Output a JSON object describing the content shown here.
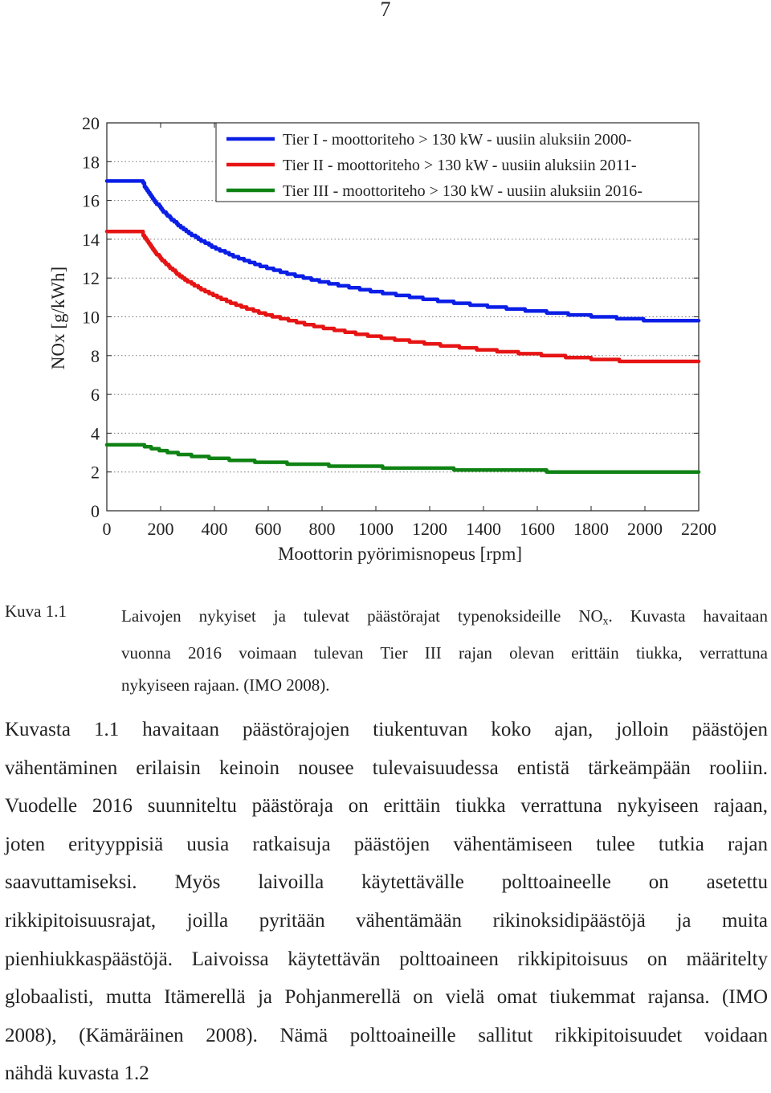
{
  "page_number": "7",
  "chart_data": {
    "type": "line",
    "title": "",
    "xlabel": "Moottorin pyörimisnopeus [rpm]",
    "ylabel": "NOx [g/kWh]",
    "xlim": [
      0,
      2200
    ],
    "ylim": [
      0,
      20
    ],
    "x_ticks": [
      0,
      200,
      400,
      600,
      800,
      1000,
      1200,
      1400,
      1600,
      1800,
      2000,
      2200
    ],
    "y_ticks": [
      0,
      2,
      4,
      6,
      8,
      10,
      12,
      14,
      16,
      18,
      20
    ],
    "grid": "horizontal dotted",
    "legend_position": "top-right",
    "series": [
      {
        "name": "Tier I - moottoriteho > 130 kW - uusiin aluksiin 2000-",
        "color": "#0a1ee6",
        "formula": "45 * n^-0.2",
        "flat_below_rpm": 130,
        "flat_above_rpm": 2000,
        "x": [
          0,
          130,
          200,
          300,
          400,
          500,
          600,
          800,
          1000,
          1200,
          1400,
          1600,
          1800,
          2000,
          2200
        ],
        "values": [
          17.0,
          17.0,
          15.6,
          14.4,
          13.6,
          13.0,
          12.4,
          11.7,
          11.3,
          10.8,
          10.5,
          10.3,
          10.0,
          9.8,
          9.8
        ]
      },
      {
        "name": "Tier II - moottoriteho > 130 kW - uusiin aluksiin 2011-",
        "color": "#e61414",
        "formula": "44 * n^-0.23",
        "flat_below_rpm": 130,
        "flat_above_rpm": 2000,
        "x": [
          0,
          130,
          200,
          300,
          400,
          500,
          600,
          800,
          1000,
          1200,
          1400,
          1600,
          1800,
          2000,
          2200
        ],
        "values": [
          14.4,
          14.4,
          13.1,
          12.0,
          11.2,
          10.6,
          10.1,
          9.5,
          9.0,
          8.6,
          8.3,
          8.0,
          7.9,
          7.7,
          7.7
        ]
      },
      {
        "name": "Tier III - moottoriteho > 130 kW - uusiin aluksiin 2016-",
        "color": "#0f8214",
        "formula": "9 * n^-0.2",
        "flat_below_rpm": 130,
        "flat_above_rpm": 2000,
        "x": [
          0,
          130,
          200,
          300,
          400,
          500,
          600,
          800,
          1000,
          1200,
          1400,
          1600,
          1800,
          2000,
          2200
        ],
        "values": [
          3.4,
          3.4,
          3.1,
          2.9,
          2.7,
          2.6,
          2.5,
          2.4,
          2.3,
          2.2,
          2.1,
          2.1,
          2.0,
          2.0,
          2.0
        ]
      }
    ]
  },
  "caption": {
    "label": "Kuva 1.1",
    "line1_pre": "Laivojen nykyiset ja tulevat päästörajat typenoksideille NO",
    "line1_sub": "x",
    "line1_post": ". Kuvasta havaitaan",
    "line2": "vuonna 2016 voimaan tulevan Tier III rajan olevan erittäin tiukka, verrattuna",
    "line3": "nykyiseen rajaan. (IMO 2008)."
  },
  "body": [
    "Kuvasta 1.1 havaitaan päästörajojen tiukentuvan koko ajan, jolloin päästöjen",
    "vähentäminen erilaisin keinoin nousee tulevaisuudessa entistä tärkeämpään rooliin.",
    "Vuodelle 2016 suunniteltu päästöraja on erittäin tiukka verrattuna nykyiseen rajaan,",
    "joten erityyppisiä uusia ratkaisuja päästöjen vähentämiseen tulee tutkia rajan",
    "saavuttamiseksi. Myös laivoilla käytettävälle polttoaineelle on asetettu",
    "rikkipitoisuusrajat, joilla pyritään vähentämään rikinoksidipäästöjä ja muita",
    "pienhiukkaspäästöjä. Laivoissa käytettävän polttoaineen rikkipitoisuus on määritelty",
    "globaalisti, mutta Itämerellä ja Pohjanmerellä on vielä omat tiukemmat rajansa. (IMO",
    "2008), (Kämäräinen 2008). Nämä polttoaineille sallitut rikkipitoisuudet voidaan",
    "nähdä kuvasta 1.2"
  ]
}
